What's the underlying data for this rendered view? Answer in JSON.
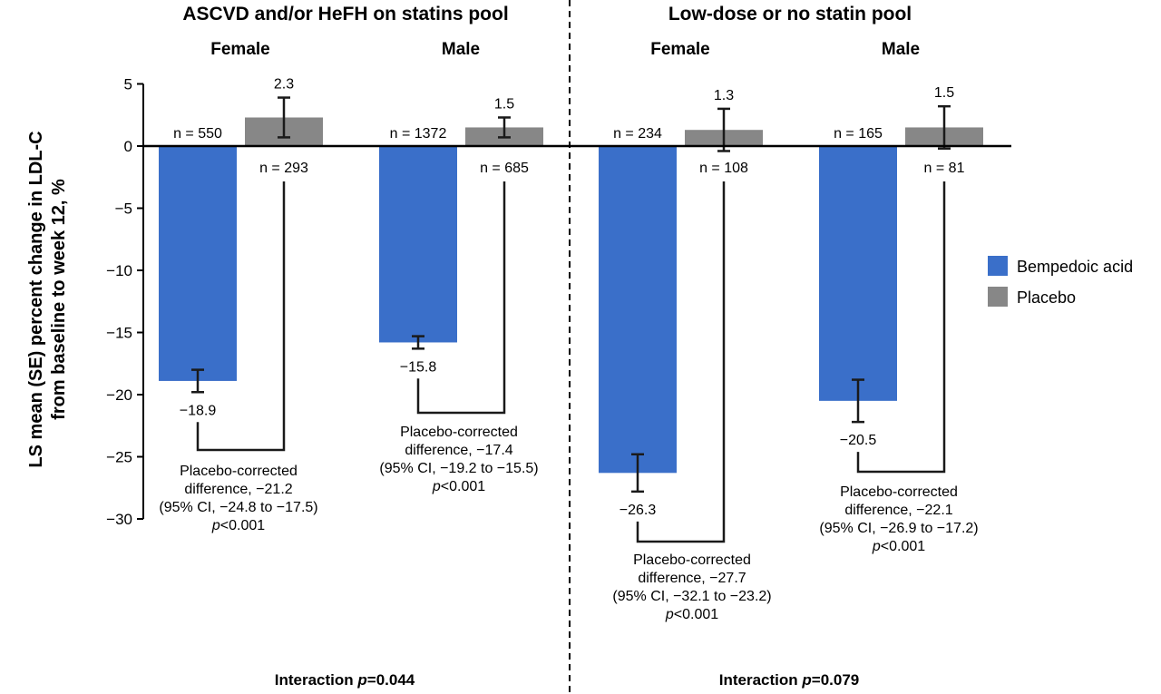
{
  "chart_data": {
    "type": "bar",
    "ylabel_lines": [
      "LS mean (SE) percent change in LDL-C",
      "from baseline to week 12, %"
    ],
    "ylim": [
      -30,
      5
    ],
    "yticks": [
      5,
      0,
      -5,
      -10,
      -15,
      -20,
      -25,
      -30
    ],
    "legend": [
      {
        "name": "Bempedoic acid",
        "color": "#3A6FC9"
      },
      {
        "name": "Placebo",
        "color": "#878787"
      }
    ],
    "pools": [
      {
        "title": "ASCVD and/or HeFH on statins pool",
        "interaction": {
          "prefix": "Interaction ",
          "p": "p",
          "value": "=0.044"
        },
        "groups": [
          {
            "sex": "Female",
            "bempedoic": {
              "value": -18.9,
              "se": 0.9,
              "label": "−18.9",
              "n": "n = 550"
            },
            "placebo": {
              "value": 2.3,
              "se": 1.6,
              "label": "2.3",
              "n": "n = 293"
            },
            "difference": {
              "lines": [
                "Placebo-corrected",
                "difference, −21.2",
                "(95% CI, −24.8 to −17.5)"
              ],
              "p": "p",
              "p_value": "<0.001"
            }
          },
          {
            "sex": "Male",
            "bempedoic": {
              "value": -15.8,
              "se": 0.5,
              "label": "−15.8",
              "n": "n = 1372"
            },
            "placebo": {
              "value": 1.5,
              "se": 0.8,
              "label": "1.5",
              "n": "n = 685"
            },
            "difference": {
              "lines": [
                "Placebo-corrected",
                "difference, −17.4",
                "(95% CI, −19.2 to −15.5)"
              ],
              "p": "p",
              "p_value": "<0.001"
            }
          }
        ]
      },
      {
        "title": "Low-dose or no statin pool",
        "interaction": {
          "prefix": "Interaction ",
          "p": "p",
          "value": "=0.079"
        },
        "groups": [
          {
            "sex": "Female",
            "bempedoic": {
              "value": -26.3,
              "se": 1.5,
              "label": "−26.3",
              "n": "n = 234"
            },
            "placebo": {
              "value": 1.3,
              "se": 1.7,
              "label": "1.3",
              "n": "n = 108"
            },
            "difference": {
              "lines": [
                "Placebo-corrected",
                "difference, −27.7",
                "(95% CI, −32.1 to −23.2)"
              ],
              "p": "p",
              "p_value": "<0.001"
            }
          },
          {
            "sex": "Male",
            "bempedoic": {
              "value": -20.5,
              "se": 1.7,
              "label": "−20.5",
              "n": "n = 165"
            },
            "placebo": {
              "value": 1.5,
              "se": 1.7,
              "label": "1.5",
              "n": "n = 81"
            },
            "difference": {
              "lines": [
                "Placebo-corrected",
                "difference, −22.1",
                "(95% CI, −26.9 to −17.2)"
              ],
              "p": "p",
              "p_value": "<0.001"
            }
          }
        ]
      }
    ]
  }
}
